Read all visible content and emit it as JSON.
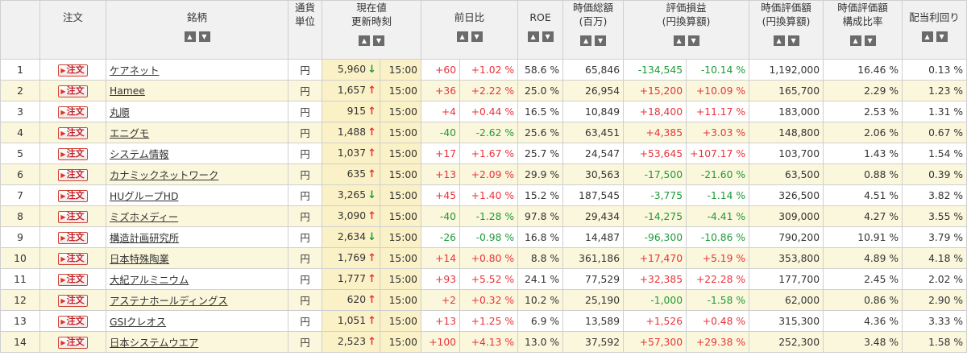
{
  "headers": {
    "no": "",
    "order": "注文",
    "stock": "銘柄",
    "currency_l1": "通貨",
    "currency_l2": "単位",
    "price_l1": "現在値",
    "price_l2": "更新時刻",
    "change": "前日比",
    "roe": "ROE",
    "mcap_l1": "時価総額",
    "mcap_l2": "(百万)",
    "pl_l1": "評価損益",
    "pl_l2": "(円換算額)",
    "val_l1": "時価評価額",
    "val_l2": "(円換算額)",
    "ratio_l1": "時価評価額",
    "ratio_l2": "構成比率",
    "div": "配当利回り",
    "sort_up": "▲",
    "sort_down": "▼"
  },
  "order_label": "注文",
  "rows": [
    {
      "no": "1",
      "name": "ケアネット",
      "cur": "円",
      "price": "5,960",
      "dir": "down",
      "time": "15:00",
      "chg": "+60",
      "chgp": "+1.02 %",
      "roe": "58.6 %",
      "mcap": "65,846",
      "pl": "-134,545",
      "plp": "-10.14 %",
      "val": "1,192,000",
      "ratio": "16.46 %",
      "div": "0.13 %"
    },
    {
      "no": "2",
      "name": "Hamee",
      "cur": "円",
      "price": "1,657",
      "dir": "up",
      "time": "15:00",
      "chg": "+36",
      "chgp": "+2.22 %",
      "roe": "25.0 %",
      "mcap": "26,954",
      "pl": "+15,200",
      "plp": "+10.09 %",
      "val": "165,700",
      "ratio": "2.29 %",
      "div": "1.23 %"
    },
    {
      "no": "3",
      "name": "丸順",
      "cur": "円",
      "price": "915",
      "dir": "up",
      "time": "15:00",
      "chg": "+4",
      "chgp": "+0.44 %",
      "roe": "16.5 %",
      "mcap": "10,849",
      "pl": "+18,400",
      "plp": "+11.17 %",
      "val": "183,000",
      "ratio": "2.53 %",
      "div": "1.31 %"
    },
    {
      "no": "4",
      "name": "エニグモ",
      "cur": "円",
      "price": "1,488",
      "dir": "up",
      "time": "15:00",
      "chg": "-40",
      "chgp": "-2.62 %",
      "roe": "25.6 %",
      "mcap": "63,451",
      "pl": "+4,385",
      "plp": "+3.03 %",
      "val": "148,800",
      "ratio": "2.06 %",
      "div": "0.67 %"
    },
    {
      "no": "5",
      "name": "システム情報",
      "cur": "円",
      "price": "1,037",
      "dir": "up",
      "time": "15:00",
      "chg": "+17",
      "chgp": "+1.67 %",
      "roe": "25.7 %",
      "mcap": "24,547",
      "pl": "+53,645",
      "plp": "+107.17 %",
      "val": "103,700",
      "ratio": "1.43 %",
      "div": "1.54 %"
    },
    {
      "no": "6",
      "name": "カナミックネットワーク",
      "cur": "円",
      "price": "635",
      "dir": "up",
      "time": "15:00",
      "chg": "+13",
      "chgp": "+2.09 %",
      "roe": "29.9 %",
      "mcap": "30,563",
      "pl": "-17,500",
      "plp": "-21.60 %",
      "val": "63,500",
      "ratio": "0.88 %",
      "div": "0.39 %"
    },
    {
      "no": "7",
      "name": "HUグループHD",
      "cur": "円",
      "price": "3,265",
      "dir": "down",
      "time": "15:00",
      "chg": "+45",
      "chgp": "+1.40 %",
      "roe": "15.2 %",
      "mcap": "187,545",
      "pl": "-3,775",
      "plp": "-1.14 %",
      "val": "326,500",
      "ratio": "4.51 %",
      "div": "3.82 %"
    },
    {
      "no": "8",
      "name": "ミズホメディー",
      "cur": "円",
      "price": "3,090",
      "dir": "up",
      "time": "15:00",
      "chg": "-40",
      "chgp": "-1.28 %",
      "roe": "97.8 %",
      "mcap": "29,434",
      "pl": "-14,275",
      "plp": "-4.41 %",
      "val": "309,000",
      "ratio": "4.27 %",
      "div": "3.55 %"
    },
    {
      "no": "9",
      "name": "構造計画研究所",
      "cur": "円",
      "price": "2,634",
      "dir": "down",
      "time": "15:00",
      "chg": "-26",
      "chgp": "-0.98 %",
      "roe": "16.8 %",
      "mcap": "14,487",
      "pl": "-96,300",
      "plp": "-10.86 %",
      "val": "790,200",
      "ratio": "10.91 %",
      "div": "3.79 %"
    },
    {
      "no": "10",
      "name": "日本特殊陶業",
      "cur": "円",
      "price": "1,769",
      "dir": "up",
      "time": "15:00",
      "chg": "+14",
      "chgp": "+0.80 %",
      "roe": "8.8 %",
      "mcap": "361,186",
      "pl": "+17,470",
      "plp": "+5.19 %",
      "val": "353,800",
      "ratio": "4.89 %",
      "div": "4.18 %"
    },
    {
      "no": "11",
      "name": "大紀アルミニウム",
      "cur": "円",
      "price": "1,777",
      "dir": "up",
      "time": "15:00",
      "chg": "+93",
      "chgp": "+5.52 %",
      "roe": "24.1 %",
      "mcap": "77,529",
      "pl": "+32,385",
      "plp": "+22.28 %",
      "val": "177,700",
      "ratio": "2.45 %",
      "div": "2.02 %"
    },
    {
      "no": "12",
      "name": "アステナホールディングス",
      "cur": "円",
      "price": "620",
      "dir": "up",
      "time": "15:00",
      "chg": "+2",
      "chgp": "+0.32 %",
      "roe": "10.2 %",
      "mcap": "25,190",
      "pl": "-1,000",
      "plp": "-1.58 %",
      "val": "62,000",
      "ratio": "0.86 %",
      "div": "2.90 %"
    },
    {
      "no": "13",
      "name": "GSIクレオス",
      "cur": "円",
      "price": "1,051",
      "dir": "up",
      "time": "15:00",
      "chg": "+13",
      "chgp": "+1.25 %",
      "roe": "6.9 %",
      "mcap": "13,589",
      "pl": "+1,526",
      "plp": "+0.48 %",
      "val": "315,300",
      "ratio": "4.36 %",
      "div": "3.33 %"
    },
    {
      "no": "14",
      "name": "日本システムウエア",
      "cur": "円",
      "price": "2,523",
      "dir": "up",
      "time": "15:00",
      "chg": "+100",
      "chgp": "+4.13 %",
      "roe": "13.0 %",
      "mcap": "37,592",
      "pl": "+57,300",
      "plp": "+29.38 %",
      "val": "252,300",
      "ratio": "3.48 %",
      "div": "1.58 %"
    }
  ],
  "colors": {
    "positive": "#e8333a",
    "negative": "#1e9a36",
    "row_alt": "#fbf7dc",
    "price_bg": "#fbf1c7"
  },
  "icons": {
    "up": "↑",
    "down": "↓"
  }
}
